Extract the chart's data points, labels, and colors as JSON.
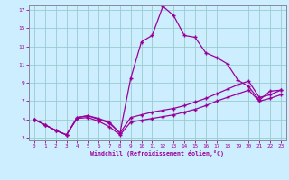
{
  "x": [
    0,
    1,
    2,
    3,
    4,
    5,
    6,
    7,
    8,
    9,
    10,
    11,
    12,
    13,
    14,
    15,
    16,
    17,
    18,
    19,
    20,
    21,
    22,
    23
  ],
  "line1": [
    5.0,
    4.4,
    3.8,
    3.3,
    5.2,
    5.4,
    5.0,
    4.6,
    3.5,
    9.5,
    13.5,
    14.2,
    17.4,
    16.4,
    14.2,
    14.0,
    12.3,
    11.8,
    11.1,
    9.3,
    8.6,
    7.1,
    8.1,
    8.2
  ],
  "line2": [
    5.0,
    4.4,
    3.8,
    3.3,
    5.2,
    5.4,
    5.1,
    4.7,
    3.5,
    5.2,
    5.5,
    5.8,
    6.0,
    6.2,
    6.5,
    6.9,
    7.3,
    7.8,
    8.3,
    8.8,
    9.2,
    7.4,
    7.7,
    8.2
  ],
  "line3": [
    5.0,
    4.4,
    3.8,
    3.3,
    5.1,
    5.2,
    4.8,
    4.2,
    3.3,
    4.7,
    4.9,
    5.1,
    5.3,
    5.5,
    5.8,
    6.1,
    6.5,
    7.0,
    7.4,
    7.8,
    8.2,
    7.0,
    7.3,
    7.7
  ],
  "line_color": "#990099",
  "bg_color": "#cceeff",
  "grid_color": "#99cccc",
  "xlabel": "Windchill (Refroidissement éolien,°C)",
  "ylim_min": 3,
  "ylim_max": 17,
  "xlim_min": 0,
  "xlim_max": 23,
  "yticks": [
    3,
    5,
    7,
    9,
    11,
    13,
    15,
    17
  ],
  "xticks": [
    0,
    1,
    2,
    3,
    4,
    5,
    6,
    7,
    8,
    9,
    10,
    11,
    12,
    13,
    14,
    15,
    16,
    17,
    18,
    19,
    20,
    21,
    22,
    23
  ]
}
